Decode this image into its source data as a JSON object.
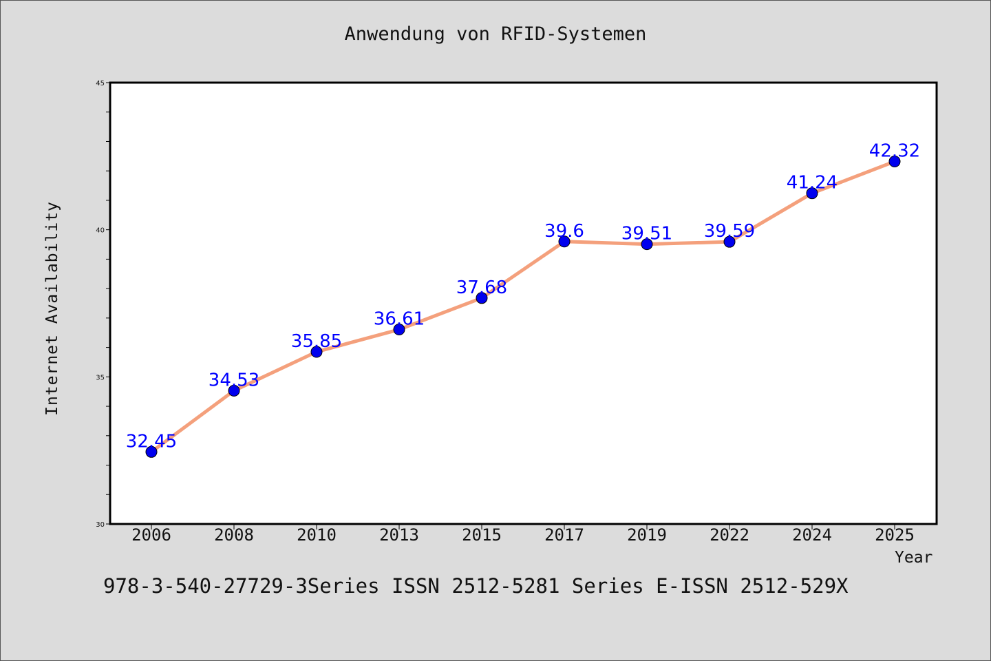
{
  "chart_data": {
    "type": "line",
    "title": "Anwendung von RFID-Systemen",
    "xlabel": "Year",
    "ylabel": "Internet Availability",
    "categories": [
      "2006",
      "2008",
      "2010",
      "2013",
      "2015",
      "2017",
      "2019",
      "2022",
      "2024",
      "2025"
    ],
    "series": [
      {
        "values": [
          32.45,
          34.53,
          35.85,
          36.61,
          37.68,
          39.6,
          39.51,
          39.59,
          41.24,
          42.32
        ],
        "labels": [
          "32.45",
          "34.53",
          "35.85",
          "36.61",
          "37.68",
          "39.6",
          "39.51",
          "39.59",
          "41.24",
          "42.32"
        ],
        "line_color": "#f4a07c",
        "marker_color": "#0000ee",
        "label_color": "#0000ff"
      }
    ],
    "ylim": [
      30,
      45
    ],
    "yticks": [
      "30",
      "35",
      "40",
      "45"
    ],
    "grid": false,
    "legend": "none"
  },
  "footer": "978-3-540-27729-3Series ISSN 2512-5281 Series E-ISSN 2512-529X",
  "colors": {
    "background": "#dcdcdc",
    "plot_background": "#ffffff"
  }
}
